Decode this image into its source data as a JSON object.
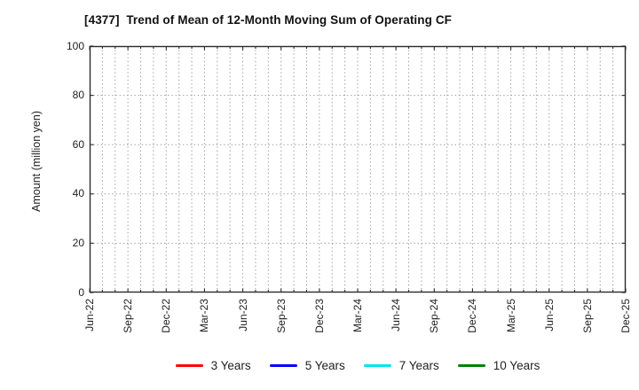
{
  "chart_data": {
    "type": "line",
    "title": "[4377]  Trend of Mean of 12-Month Moving Sum of Operating CF",
    "xlabel": "",
    "ylabel": "Amount (million yen)",
    "ylim": [
      0,
      100
    ],
    "yticks": [
      0,
      20,
      40,
      60,
      80,
      100
    ],
    "categories": [
      "Jun-22",
      "Sep-22",
      "Dec-22",
      "Mar-23",
      "Jun-23",
      "Sep-23",
      "Dec-23",
      "Mar-24",
      "Jun-24",
      "Sep-24",
      "Dec-24",
      "Mar-25",
      "Jun-25",
      "Sep-25",
      "Dec-25"
    ],
    "x_minor_per_major": 3,
    "grid": true,
    "grid_style": "dotted",
    "legend_position": "bottom-center",
    "series": [
      {
        "name": "3 Years",
        "color": "#ff0000",
        "values": []
      },
      {
        "name": "5 Years",
        "color": "#0000ff",
        "values": []
      },
      {
        "name": "7 Years",
        "color": "#00e5ee",
        "values": []
      },
      {
        "name": "10 Years",
        "color": "#008000",
        "values": []
      }
    ],
    "colors": {
      "spine": "#2b2b2b",
      "grid": "#9e9e9e",
      "tick": "#2b2b2b",
      "text": "#222222",
      "background": "#ffffff"
    }
  }
}
